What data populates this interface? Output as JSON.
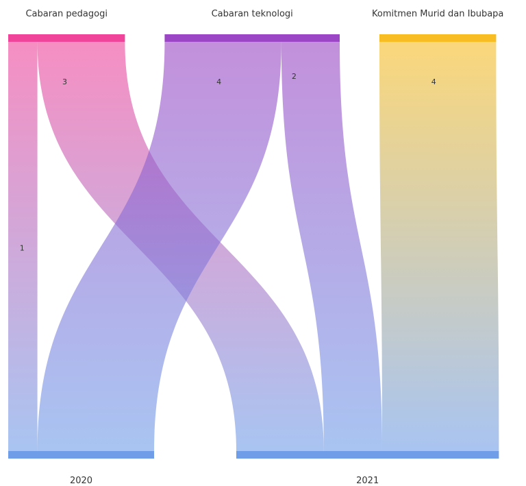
{
  "chart_data": {
    "type": "sankey",
    "title": "",
    "colors": {
      "pink": "#f0439a",
      "purple": "#9b46c4",
      "yellow": "#f7bd22",
      "blue": "#6f9de8"
    },
    "source_nodes": [
      {
        "id": "ped",
        "label": "Cabaran pedagogi",
        "color": "#f0439a"
      },
      {
        "id": "tek",
        "label": "Cabaran teknologi",
        "color": "#9b46c4"
      },
      {
        "id": "kom",
        "label": "Komitmen Murid dan Ibubapa",
        "color": "#f7bd22"
      }
    ],
    "target_nodes": [
      {
        "id": "y2020",
        "label": "2020",
        "color": "#6f9de8"
      },
      {
        "id": "y2021",
        "label": "2021",
        "color": "#6f9de8"
      }
    ],
    "links": [
      {
        "source": "ped",
        "target": "y2020",
        "value": 1,
        "label": "1"
      },
      {
        "source": "ped",
        "target": "y2021",
        "value": 3,
        "label": "3"
      },
      {
        "source": "tek",
        "target": "y2020",
        "value": 4,
        "label": "4"
      },
      {
        "source": "tek",
        "target": "y2021",
        "value": 2,
        "label": "2"
      },
      {
        "source": "kom",
        "target": "y2021",
        "value": 4,
        "label": "4"
      }
    ]
  }
}
